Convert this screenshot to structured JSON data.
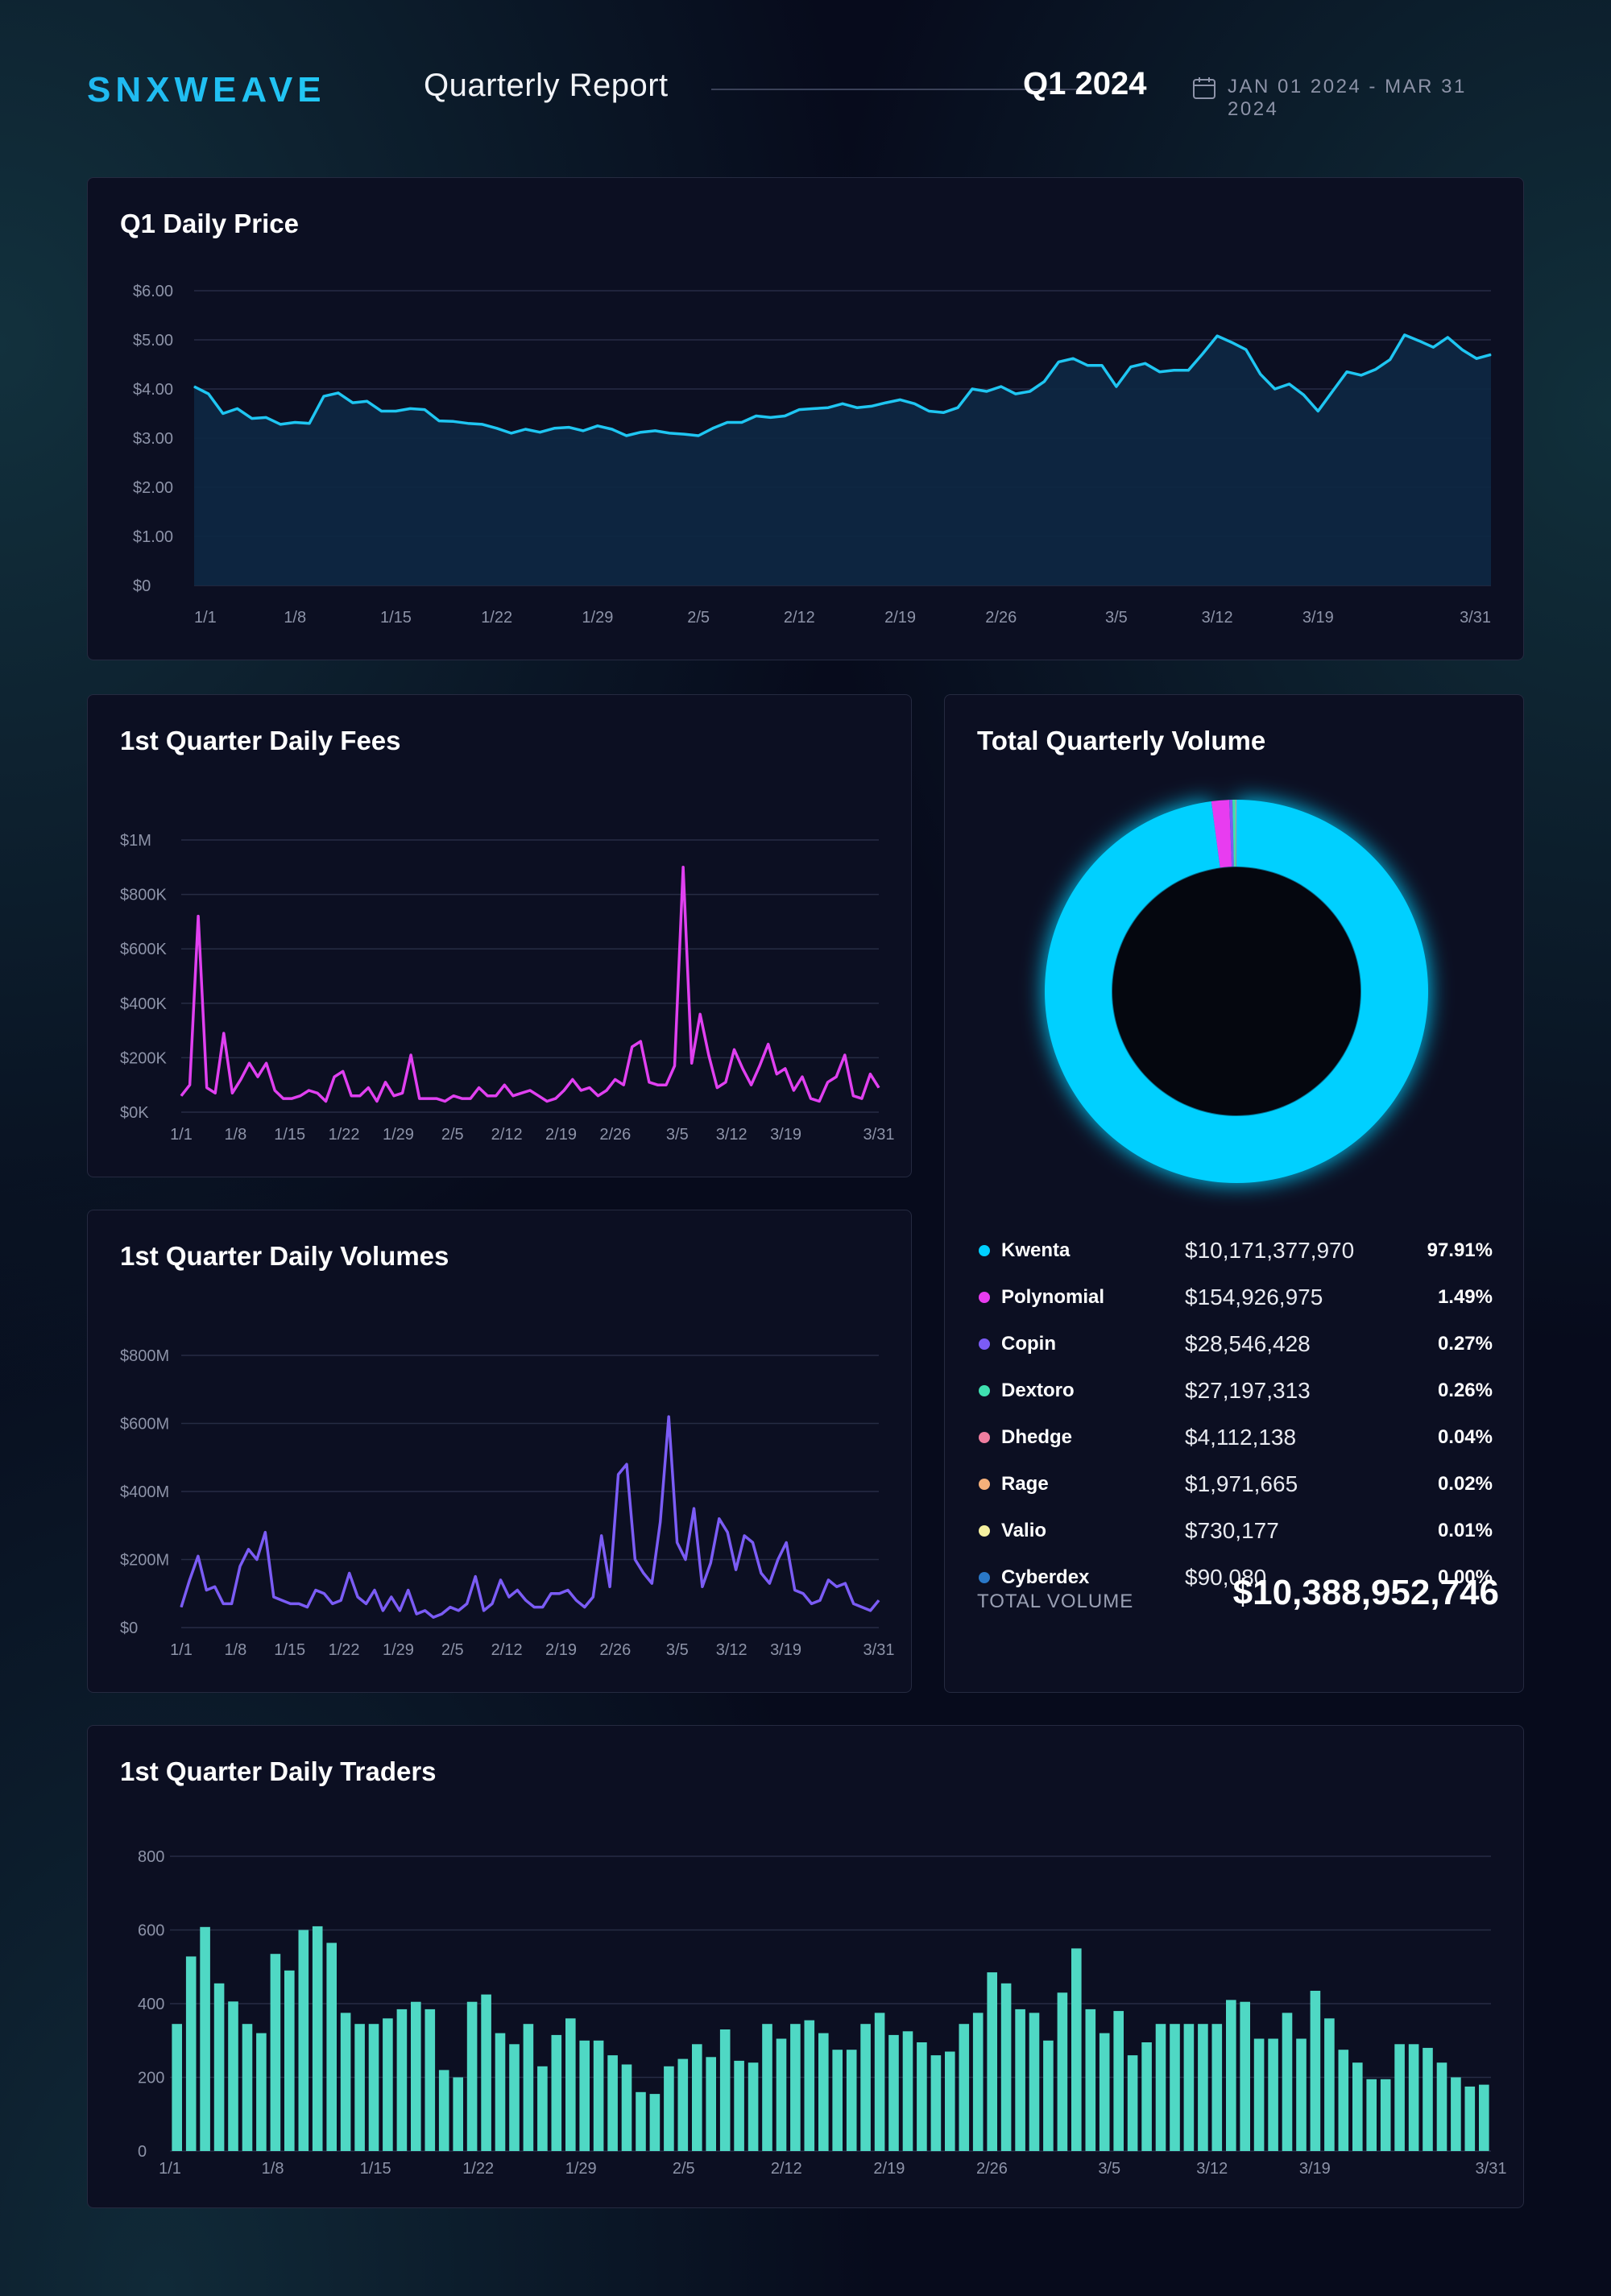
{
  "header": {
    "brand": "SNXWEAVE",
    "subtitle": "Quarterly Report",
    "quarter": "Q1 2024",
    "date_range": "JAN 01 2024 - MAR 31 2024"
  },
  "colors": {
    "price": "#1fc6f2",
    "fees": "#e040f0",
    "volumes": "#7b5cf5",
    "traders": "#4fd8c4",
    "brand": "#1fb8f0"
  },
  "x_ticks": [
    "1/1",
    "1/8",
    "1/15",
    "1/22",
    "1/29",
    "2/5",
    "2/12",
    "2/19",
    "2/26",
    "3/5",
    "3/12",
    "3/19",
    "3/31"
  ],
  "price_panel": {
    "title": "Q1 Daily Price",
    "chart_data": {
      "type": "area",
      "title": "Q1 Daily Price",
      "ylim": [
        0,
        6
      ],
      "yticks": [
        "$0",
        "$1.00",
        "$2.00",
        "$3.00",
        "$4.00",
        "$5.00",
        "$6.00"
      ],
      "x_start": "2024-01-01",
      "values": [
        4.05,
        3.9,
        3.5,
        3.6,
        3.4,
        3.42,
        3.28,
        3.32,
        3.3,
        3.85,
        3.92,
        3.72,
        3.75,
        3.55,
        3.55,
        3.6,
        3.58,
        3.35,
        3.34,
        3.3,
        3.28,
        3.2,
        3.1,
        3.18,
        3.12,
        3.2,
        3.22,
        3.15,
        3.25,
        3.18,
        3.05,
        3.12,
        3.15,
        3.1,
        3.08,
        3.05,
        3.2,
        3.32,
        3.32,
        3.45,
        3.42,
        3.45,
        3.58,
        3.6,
        3.62,
        3.7,
        3.62,
        3.65,
        3.72,
        3.78,
        3.7,
        3.55,
        3.52,
        3.62,
        4.0,
        3.95,
        4.05,
        3.9,
        3.95,
        4.15,
        4.55,
        4.62,
        4.48,
        4.48,
        4.05,
        4.45,
        4.52,
        4.35,
        4.38,
        4.38,
        4.72,
        5.08,
        4.95,
        4.8,
        4.3,
        4.0,
        4.1,
        3.88,
        3.55,
        3.95,
        4.35,
        4.28,
        4.4,
        4.6,
        5.1,
        4.98,
        4.85,
        5.05,
        4.8,
        4.62,
        4.7
      ]
    }
  },
  "fees_panel": {
    "title": "1st Quarter Daily Fees",
    "chart_data": {
      "type": "line",
      "title": "1st Quarter Daily Fees",
      "ylim": [
        0,
        1000000
      ],
      "yticks": [
        "$0K",
        "$200K",
        "$400K",
        "$600K",
        "$800K",
        "$1M"
      ],
      "x_start": "2024-01-01",
      "values": [
        60000,
        100000,
        720000,
        90000,
        70000,
        290000,
        70000,
        120000,
        180000,
        130000,
        180000,
        80000,
        50000,
        50000,
        60000,
        80000,
        70000,
        40000,
        130000,
        150000,
        60000,
        60000,
        90000,
        40000,
        110000,
        60000,
        70000,
        210000,
        50000,
        50000,
        50000,
        40000,
        60000,
        50000,
        50000,
        90000,
        60000,
        60000,
        100000,
        60000,
        70000,
        80000,
        60000,
        40000,
        50000,
        80000,
        120000,
        80000,
        90000,
        60000,
        80000,
        120000,
        100000,
        240000,
        260000,
        110000,
        100000,
        100000,
        170000,
        900000,
        180000,
        360000,
        210000,
        90000,
        110000,
        230000,
        160000,
        100000,
        170000,
        250000,
        140000,
        160000,
        80000,
        130000,
        50000,
        40000,
        110000,
        130000,
        210000,
        60000,
        50000,
        140000,
        90000
      ]
    }
  },
  "volumes_panel": {
    "title": "1st Quarter Daily Volumes",
    "chart_data": {
      "type": "line",
      "title": "1st Quarter Daily Volumes",
      "ylim": [
        0,
        800000000
      ],
      "yticks": [
        "$0",
        "$200M",
        "$400M",
        "$600M",
        "$800M"
      ],
      "x_start": "2024-01-01",
      "values": [
        60000000,
        140000000,
        210000000,
        110000000,
        120000000,
        70000000,
        70000000,
        180000000,
        230000000,
        200000000,
        280000000,
        90000000,
        80000000,
        70000000,
        70000000,
        60000000,
        110000000,
        100000000,
        70000000,
        80000000,
        160000000,
        90000000,
        70000000,
        110000000,
        50000000,
        90000000,
        50000000,
        110000000,
        40000000,
        50000000,
        30000000,
        40000000,
        60000000,
        50000000,
        70000000,
        150000000,
        50000000,
        70000000,
        140000000,
        90000000,
        110000000,
        80000000,
        60000000,
        60000000,
        100000000,
        100000000,
        110000000,
        80000000,
        60000000,
        90000000,
        270000000,
        120000000,
        450000000,
        480000000,
        200000000,
        160000000,
        130000000,
        310000000,
        620000000,
        250000000,
        200000000,
        350000000,
        120000000,
        190000000,
        320000000,
        280000000,
        170000000,
        270000000,
        250000000,
        160000000,
        130000000,
        200000000,
        250000000,
        110000000,
        100000000,
        70000000,
        80000000,
        140000000,
        120000000,
        130000000,
        70000000,
        60000000,
        50000000,
        80000000
      ]
    }
  },
  "volume_panel": {
    "title": "Total Quarterly Volume",
    "chart_data": {
      "type": "pie",
      "title": "Total Quarterly Volume",
      "slices": [
        {
          "name": "Kwenta",
          "value": "$10,171,377,970",
          "pct": "97.91%",
          "share": 97.91,
          "color": "#00d0ff"
        },
        {
          "name": "Polynomial",
          "value": "$154,926,975",
          "pct": "1.49%",
          "share": 1.49,
          "color": "#e83cf0"
        },
        {
          "name": "Copin",
          "value": "$28,546,428",
          "pct": "0.27%",
          "share": 0.27,
          "color": "#7b5cf5"
        },
        {
          "name": "Dextoro",
          "value": "$27,197,313",
          "pct": "0.26%",
          "share": 0.26,
          "color": "#3fe0b0"
        },
        {
          "name": "Dhedge",
          "value": "$4,112,138",
          "pct": "0.04%",
          "share": 0.04,
          "color": "#f07ea0"
        },
        {
          "name": "Rage",
          "value": "$1,971,665",
          "pct": "0.02%",
          "share": 0.02,
          "color": "#f5b07a"
        },
        {
          "name": "Valio",
          "value": "$730,177",
          "pct": "0.01%",
          "share": 0.01,
          "color": "#f5f0a0"
        },
        {
          "name": "Cyberdex",
          "value": "$90,080",
          "pct": "0.00%",
          "share": 0.0,
          "color": "#2a78c8"
        }
      ]
    },
    "total_label": "TOTAL VOLUME",
    "total_value": "$10,388,952,746"
  },
  "traders_panel": {
    "title": "1st Quarter Daily Traders",
    "chart_data": {
      "type": "bar",
      "title": "1st Quarter Daily Traders",
      "ylim": [
        0,
        800
      ],
      "yticks": [
        "0",
        "200",
        "400",
        "600",
        "800"
      ],
      "x_start": "2024-01-01",
      "values": [
        345,
        528,
        608,
        455,
        406,
        345,
        320,
        535,
        490,
        600,
        610,
        565,
        375,
        345,
        345,
        360,
        385,
        405,
        385,
        220,
        200,
        405,
        425,
        320,
        290,
        345,
        230,
        315,
        360,
        300,
        300,
        260,
        235,
        160,
        155,
        230,
        250,
        290,
        255,
        330,
        245,
        240,
        345,
        305,
        345,
        355,
        320,
        275,
        275,
        345,
        375,
        315,
        325,
        295,
        260,
        270,
        345,
        375,
        485,
        455,
        385,
        375,
        300,
        430,
        550,
        385,
        320,
        380,
        260,
        295,
        345,
        345,
        345,
        345,
        345,
        410,
        405,
        305,
        305,
        375,
        305,
        435,
        360,
        275,
        240,
        195,
        195,
        290,
        290,
        280,
        240,
        200,
        175,
        180
      ]
    }
  }
}
